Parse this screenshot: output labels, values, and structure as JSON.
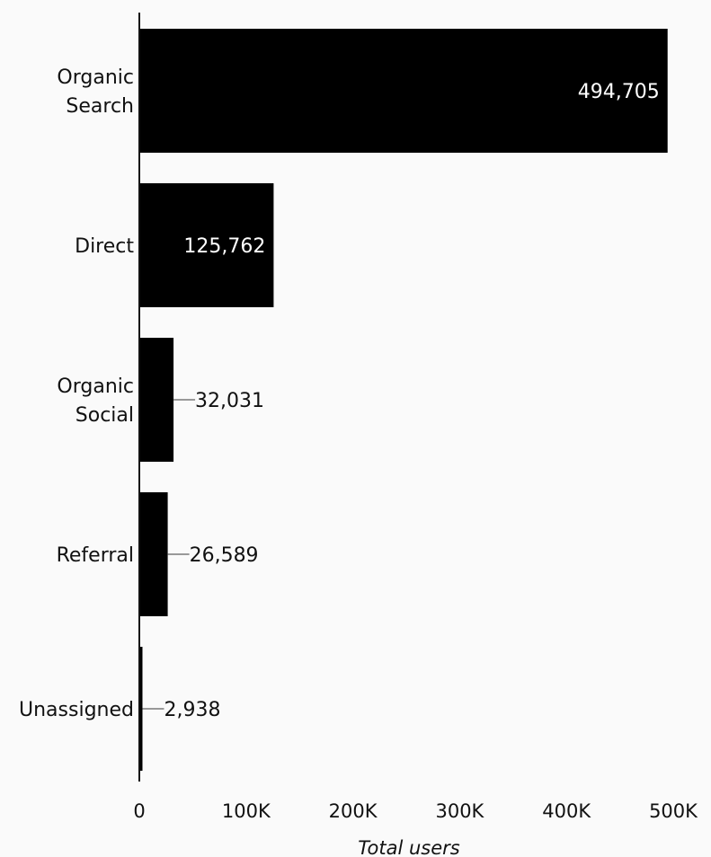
{
  "chart_data": {
    "type": "bar",
    "orientation": "horizontal",
    "categories": [
      "Organic Search",
      "Direct",
      "Organic Social",
      "Referral",
      "Unassigned"
    ],
    "category_lines": [
      [
        "Organic",
        "Search"
      ],
      [
        "Direct"
      ],
      [
        "Organic",
        "Social"
      ],
      [
        "Referral"
      ],
      [
        "Unassigned"
      ]
    ],
    "values": [
      494705,
      125762,
      32031,
      26589,
      2938
    ],
    "value_labels": [
      "494,705",
      "125,762",
      "32,031",
      "26,589",
      "2,938"
    ],
    "xlabel": "Total users",
    "ylabel": "",
    "xlim": [
      0,
      500000
    ],
    "x_ticks": [
      0,
      100000,
      200000,
      300000,
      400000,
      500000
    ],
    "x_tick_labels": [
      "0",
      "100K",
      "200K",
      "300K",
      "400K",
      "500K"
    ],
    "grid": false,
    "legend": "none",
    "colors": {
      "bar": "#000000",
      "background": "#fafafa",
      "leader_line": "#999999"
    }
  }
}
